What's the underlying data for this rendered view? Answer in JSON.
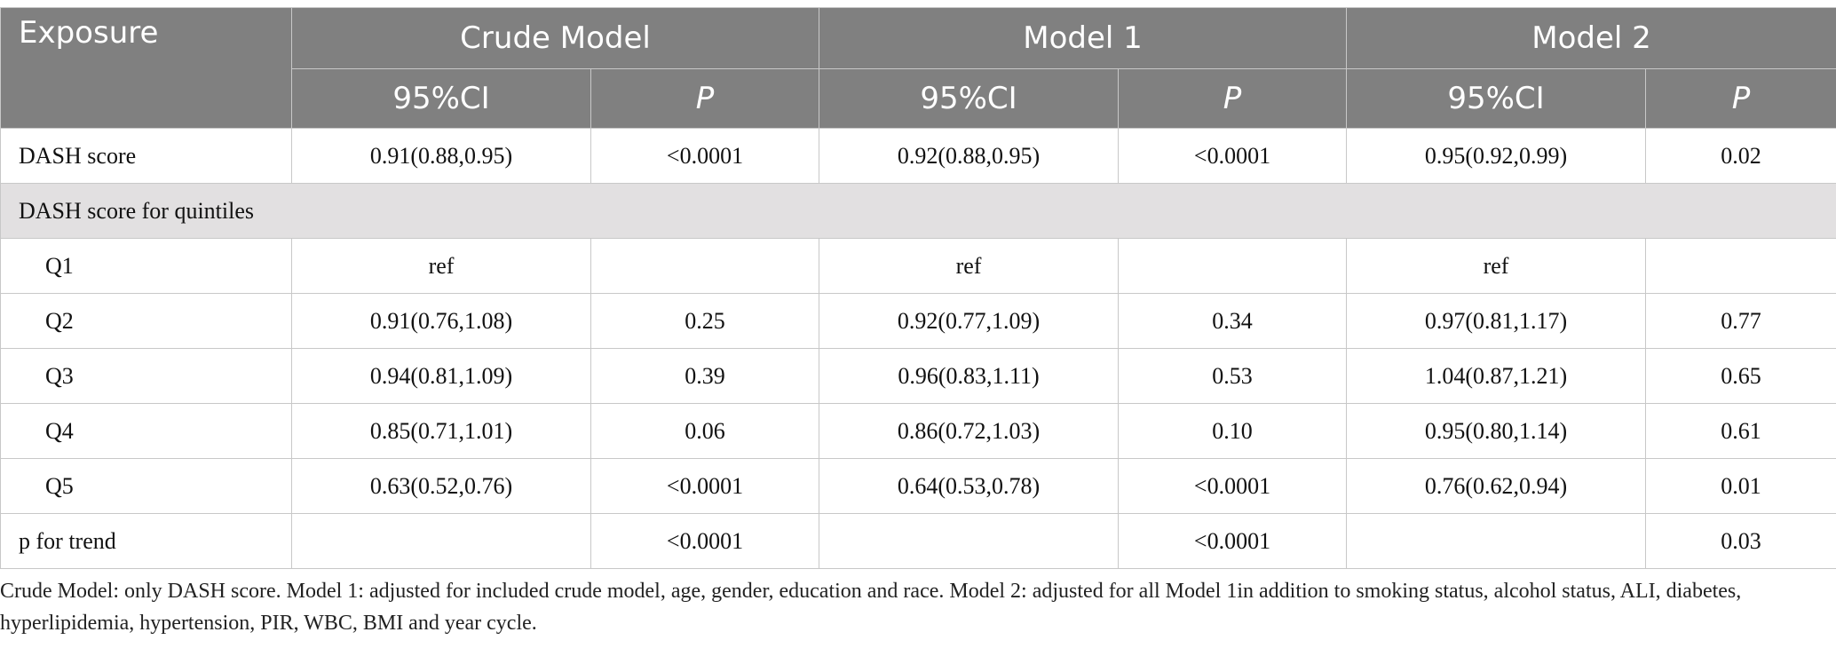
{
  "header": {
    "exposure": "Exposure",
    "models": [
      "Crude Model",
      "Model 1",
      "Model 2"
    ],
    "ci_label": "95%CI",
    "p_label": "P"
  },
  "rows": [
    {
      "label": "DASH score",
      "values": [
        "0.91(0.88,0.95)",
        "<0.0001",
        "0.92(0.88,0.95)",
        "<0.0001",
        "0.95(0.92,0.99)",
        "0.02"
      ]
    },
    {
      "label": "Q1",
      "values": [
        "ref",
        "",
        "ref",
        "",
        "ref",
        ""
      ]
    },
    {
      "label": "Q2",
      "values": [
        "0.91(0.76,1.08)",
        "0.25",
        "0.92(0.77,1.09)",
        "0.34",
        "0.97(0.81,1.17)",
        "0.77"
      ]
    },
    {
      "label": "Q3",
      "values": [
        "0.94(0.81,1.09)",
        "0.39",
        "0.96(0.83,1.11)",
        "0.53",
        "1.04(0.87,1.21)",
        "0.65"
      ]
    },
    {
      "label": "Q4",
      "values": [
        "0.85(0.71,1.01)",
        "0.06",
        "0.86(0.72,1.03)",
        "0.10",
        "0.95(0.80,1.14)",
        "0.61"
      ]
    },
    {
      "label": "Q5",
      "values": [
        "0.63(0.52,0.76)",
        "<0.0001",
        "0.64(0.53,0.78)",
        "<0.0001",
        "0.76(0.62,0.94)",
        "0.01"
      ]
    },
    {
      "label": "p for trend",
      "values": [
        "",
        "<0.0001",
        "",
        "<0.0001",
        "",
        "0.03"
      ]
    }
  ],
  "section_label": "DASH score for quintiles",
  "footnote": "Crude Model: only DASH score. Model 1: adjusted for included crude model, age, gender, education and race. Model 2: adjusted for all Model 1in addition to smoking status, alcohol status, ALI, diabetes, hyperlipidemia, hypertension, PIR, WBC, BMI and year cycle."
}
